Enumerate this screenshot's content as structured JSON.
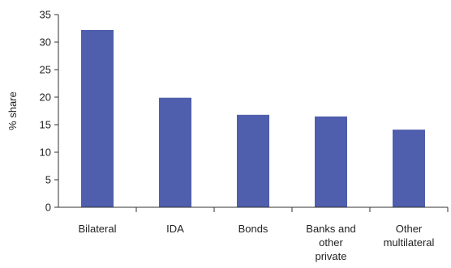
{
  "chart_data": {
    "type": "bar",
    "title": "",
    "xlabel": "",
    "ylabel": "% share",
    "ylim": [
      0,
      35
    ],
    "yticks": [
      0,
      5,
      10,
      15,
      20,
      25,
      30,
      35
    ],
    "grid": false,
    "categories": [
      [
        "Bilateral"
      ],
      [
        "IDA"
      ],
      [
        "Bonds"
      ],
      [
        "Banks and",
        "other",
        "private"
      ],
      [
        "Other",
        "multilateral"
      ]
    ],
    "values": [
      32.2,
      19.9,
      16.8,
      16.5,
      14.1
    ],
    "bar_color": "#4f5fad",
    "axis_color": "#333333"
  }
}
